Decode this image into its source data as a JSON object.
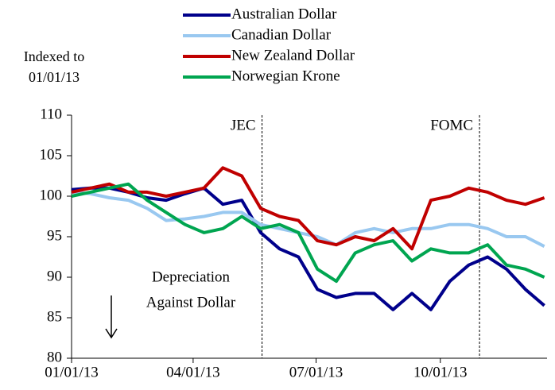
{
  "chart_data": {
    "type": "line",
    "y_label": [
      "Indexed to",
      "01/01/13"
    ],
    "x": [
      "2013-01-01",
      "2013-01-15",
      "2013-01-29",
      "2013-02-12",
      "2013-02-26",
      "2013-03-12",
      "2013-03-26",
      "2013-04-09",
      "2013-04-23",
      "2013-05-07",
      "2013-05-21",
      "2013-06-04",
      "2013-06-18",
      "2013-07-02",
      "2013-07-16",
      "2013-07-30",
      "2013-08-13",
      "2013-08-27",
      "2013-09-10",
      "2013-09-24",
      "2013-10-08",
      "2013-10-22",
      "2013-11-05",
      "2013-11-19",
      "2013-12-03",
      "2013-12-17"
    ],
    "series": [
      {
        "name": "Australian Dollar",
        "color": "#00008b",
        "values": [
          100.8,
          101,
          101,
          100.5,
          99.8,
          99.5,
          100.3,
          101,
          99,
          99.5,
          95.5,
          93.5,
          92.5,
          88.5,
          87.5,
          88,
          88,
          86,
          88,
          86,
          89.5,
          91.5,
          92.5,
          91,
          88.5,
          86.5
        ]
      },
      {
        "name": "Canadian Dollar",
        "color": "#99c8f0",
        "values": [
          100.5,
          100.3,
          99.8,
          99.5,
          98.5,
          97,
          97.2,
          97.5,
          98,
          98,
          96.5,
          96,
          95.5,
          95,
          94,
          95.5,
          96,
          95.5,
          96,
          96,
          96.5,
          96.5,
          96,
          95,
          95,
          93.8
        ]
      },
      {
        "name": "New Zealand Dollar",
        "color": "#c00000",
        "values": [
          100.5,
          101,
          101.5,
          100.5,
          100.5,
          100,
          100.5,
          101,
          103.5,
          102.5,
          98.5,
          97.5,
          97,
          94.5,
          94,
          95,
          94.5,
          96,
          93.5,
          99.5,
          100,
          101,
          100.5,
          99.5,
          99,
          99.8
        ]
      },
      {
        "name": "Norwegian Krone",
        "color": "#00a550",
        "values": [
          100,
          100.5,
          101,
          101.5,
          99.5,
          98,
          96.5,
          95.5,
          96,
          97.5,
          96,
          96.5,
          95.5,
          91,
          89.5,
          93,
          94,
          94.5,
          92,
          93.5,
          93,
          93,
          94,
          91.5,
          91,
          90
        ]
      }
    ],
    "xlim": [
      "2013-01-01",
      "2013-12-19"
    ],
    "xticks": [
      {
        "value": "2013-01-01",
        "label": "01/01/13"
      },
      {
        "value": "2013-04-01",
        "label": "04/01/13"
      },
      {
        "value": "2013-07-01",
        "label": "07/01/13"
      },
      {
        "value": "2013-10-01",
        "label": "10/01/13"
      }
    ],
    "ylim": [
      80,
      110
    ],
    "yticks": [
      80,
      85,
      90,
      95,
      100,
      105,
      110
    ],
    "events": [
      {
        "label": "JEC",
        "x": "2013-05-22"
      },
      {
        "label": "FOMC",
        "x": "2013-10-30"
      }
    ],
    "annotation": [
      "Depreciation",
      "Against Dollar"
    ]
  }
}
